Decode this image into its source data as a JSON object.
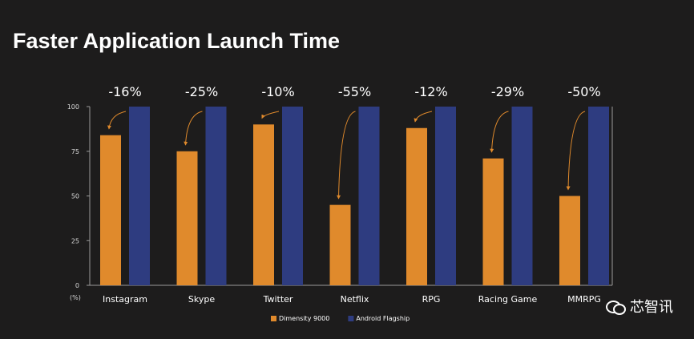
{
  "title": "Faster Application Launch Time",
  "watermark": {
    "text": "芯智讯",
    "icon": "wechat-icon"
  },
  "colors": {
    "background": "#1d1c1c",
    "dimensity": "#e08a2c",
    "android": "#2e3c80",
    "axis": "#9a9a9a",
    "text": "#ffffff"
  },
  "chart_data": {
    "type": "bar",
    "title": "Faster Application Launch Time",
    "categories": [
      "Instagram",
      "Skype",
      "Twitter",
      "Netflix",
      "RPG",
      "Racing Game",
      "MMRPG"
    ],
    "series": [
      {
        "name": "Dimensity 9000",
        "values": [
          84,
          75,
          90,
          45,
          88,
          71,
          50
        ],
        "color": "#e08a2c"
      },
      {
        "name": "Android Flagship",
        "values": [
          100,
          100,
          100,
          100,
          100,
          100,
          100
        ],
        "color": "#2e3c80"
      }
    ],
    "annotations": [
      "-16%",
      "-25%",
      "-10%",
      "-55%",
      "-12%",
      "-29%",
      "-50%"
    ],
    "ylim": [
      0,
      100
    ],
    "yticks": [
      0,
      25,
      50,
      75,
      100
    ],
    "ylabel": "(%)",
    "xlabel": "",
    "legend": "bottom-center",
    "grid": false
  }
}
